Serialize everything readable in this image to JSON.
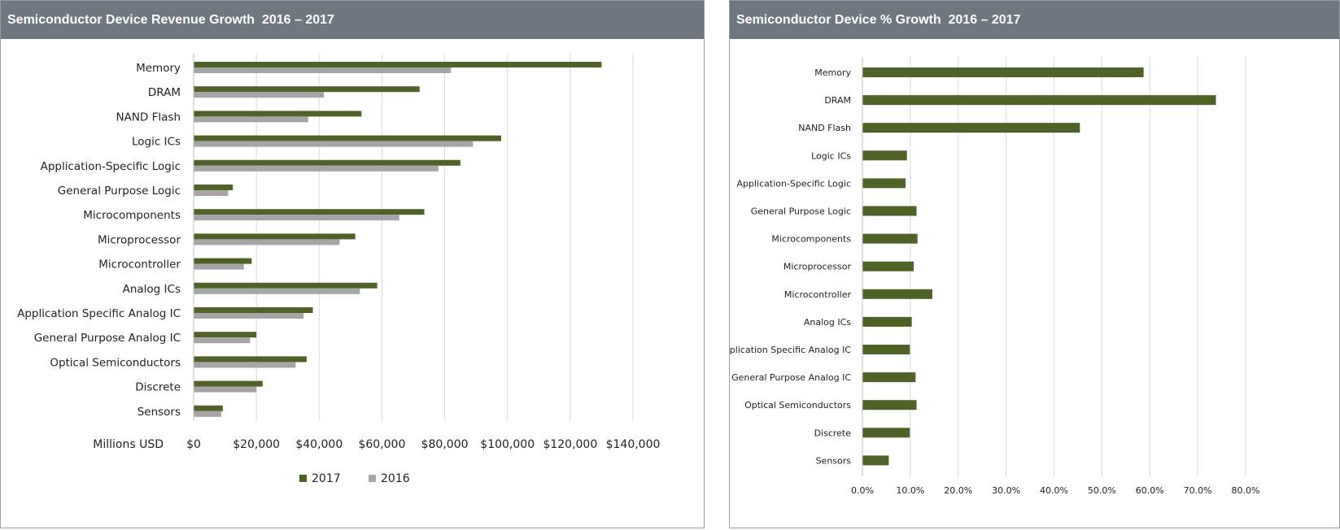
{
  "left_panel": {
    "title": "Semiconductor Device Revenue Growth  2016 – 2017"
  },
  "right_panel": {
    "title": "Semiconductor Device % Growth  2016 – 2017"
  },
  "chart_data": [
    {
      "type": "bar",
      "orientation": "horizontal",
      "title": "Semiconductor Device Revenue Growth  2016 – 2017",
      "xlabel": "Millions USD",
      "categories": [
        "Memory",
        "DRAM",
        "NAND Flash",
        "Logic ICs",
        "Application-Specific Logic",
        "General Purpose Logic",
        "Microcomponents",
        "Microprocessor",
        "Microcontroller",
        "Analog ICs",
        "Application Specific Analog IC",
        "General Purpose Analog IC",
        "Optical Semiconductors",
        "Discrete",
        "Sensors"
      ],
      "series": [
        {
          "name": "2017",
          "color": "#4f6228",
          "values": [
            130000,
            72000,
            53500,
            98000,
            85000,
            12500,
            73500,
            51500,
            18500,
            58500,
            38000,
            20000,
            36000,
            22000,
            9300
          ]
        },
        {
          "name": "2016",
          "color": "#a5a5a5",
          "values": [
            82000,
            41500,
            36500,
            89000,
            78000,
            11000,
            65500,
            46500,
            16000,
            53000,
            35000,
            18000,
            32500,
            20000,
            8800
          ]
        }
      ],
      "xlim": [
        0,
        140000
      ],
      "xticks": [
        "$0",
        "$20,000",
        "$40,000",
        "$60,000",
        "$80,000",
        "$100,000",
        "$120,000",
        "$140,000"
      ],
      "grid": "vertical",
      "legend": "bottom"
    },
    {
      "type": "bar",
      "orientation": "horizontal",
      "title": "Semiconductor Device % Growth  2016 – 2017",
      "categories": [
        "Memory",
        "DRAM",
        "NAND Flash",
        "Logic ICs",
        "Application-Specific Logic",
        "General Purpose Logic",
        "Microcomponents",
        "Microprocessor",
        "Microcontroller",
        "Analog ICs",
        "Application Specific Analog IC",
        "General Purpose Analog IC",
        "Optical Semiconductors",
        "Discrete",
        "Sensors"
      ],
      "series": [
        {
          "color": "#4f6228",
          "values": [
            58.7,
            73.8,
            45.4,
            9.3,
            9.0,
            11.3,
            11.5,
            10.7,
            14.6,
            10.3,
            9.9,
            11.1,
            11.3,
            9.9,
            5.5
          ]
        }
      ],
      "xlim": [
        0,
        80
      ],
      "xticks": [
        "0.0%",
        "10.0%",
        "20.0%",
        "30.0%",
        "40.0%",
        "50.0%",
        "60.0%",
        "70.0%",
        "80.0%"
      ],
      "grid": "vertical"
    }
  ]
}
